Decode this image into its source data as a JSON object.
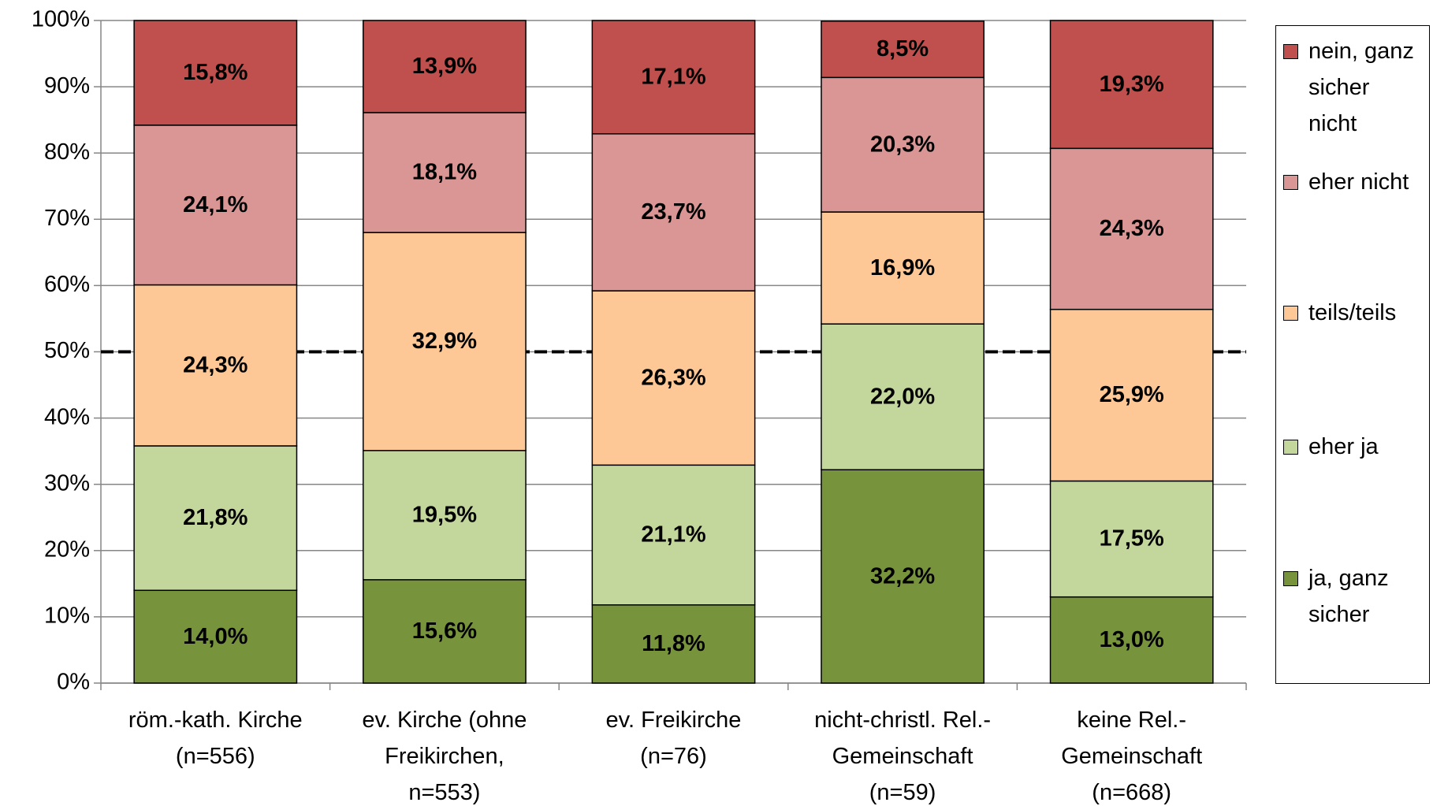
{
  "chart_data": {
    "type": "stacked_bar",
    "categories": [
      "röm.-kath. Kirche\n(n=556)",
      "ev. Kirche (ohne\nFreikirchen,\nn=553)",
      "ev. Freikirche\n(n=76)",
      "nicht-christl. Rel.-\nGemeinschaft\n(n=59)",
      "keine Rel.-\nGemeinschaft\n(n=668)"
    ],
    "series": [
      {
        "name": "ja, ganz\nsicher",
        "color": "#77933c",
        "values": [
          14.0,
          15.6,
          11.8,
          32.2,
          13.0
        ],
        "value_labels": [
          "14,0%",
          "15,6%",
          "11,8%",
          "32,2%",
          "13,0%"
        ]
      },
      {
        "name": "eher ja",
        "color": "#c3d69b",
        "values": [
          21.8,
          19.5,
          21.1,
          22.0,
          17.5
        ],
        "value_labels": [
          "21,8%",
          "19,5%",
          "21,1%",
          "22,0%",
          "17,5%"
        ]
      },
      {
        "name": "teils/teils",
        "color": "#fdc895",
        "values": [
          24.3,
          32.9,
          26.3,
          16.9,
          25.9
        ],
        "value_labels": [
          "24,3%",
          "32,9%",
          "26,3%",
          "16,9%",
          "25,9%"
        ]
      },
      {
        "name": "eher nicht",
        "color": "#d99694",
        "values": [
          24.1,
          18.1,
          23.7,
          20.3,
          24.3
        ],
        "value_labels": [
          "24,1%",
          "18,1%",
          "23,7%",
          "20,3%",
          "24,3%"
        ]
      },
      {
        "name": "nein, ganz\nsicher\nnicht",
        "color": "#c0504d",
        "values": [
          15.8,
          13.9,
          17.1,
          8.5,
          19.3
        ],
        "value_labels": [
          "15,8%",
          "13,9%",
          "17,1%",
          "8,5%",
          "19,3%"
        ]
      }
    ],
    "ylim": [
      0,
      100
    ],
    "yticks": [
      {
        "value": 0,
        "label": "0%"
      },
      {
        "value": 10,
        "label": "10%"
      },
      {
        "value": 20,
        "label": "20%"
      },
      {
        "value": 30,
        "label": "30%"
      },
      {
        "value": 40,
        "label": "40%"
      },
      {
        "value": 50,
        "label": "50%"
      },
      {
        "value": 60,
        "label": "60%"
      },
      {
        "value": 70,
        "label": "70%"
      },
      {
        "value": 80,
        "label": "80%"
      },
      {
        "value": 90,
        "label": "90%"
      },
      {
        "value": 100,
        "label": "100%"
      }
    ],
    "grid": true,
    "reference_line": 50,
    "legend": "right"
  }
}
